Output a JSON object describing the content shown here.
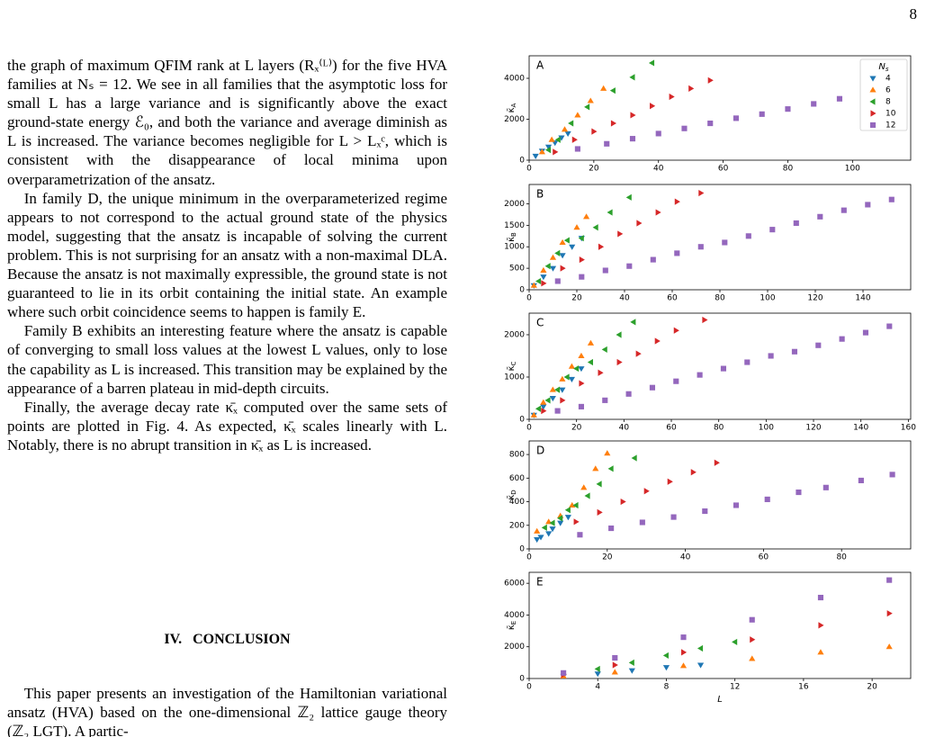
{
  "page_number": "8",
  "paragraphs": [
    "the graph of maximum QFIM rank at L layers (Rₓ⁽ᴸ⁾) for the five HVA families at Nₛ = 12. We see in all families that the asymptotic loss for small L has a large variance and is significantly above the exact ground-state energy ℰ₀, and both the variance and average diminish as L is increased. The variance becomes negligible for L > Lₓᶜ, which is consistent with the disappearance of local minima upon overparametrization of the ansatz.",
    "In family D, the unique minimum in the overparameterized regime appears to not correspond to the actual ground state of the physics model, suggesting that the ansatz is incapable of solving the current problem. This is not surprising for an ansatz with a non-maximal DLA. Because the ansatz is not maximally expressible, the ground state is not guaranteed to lie in its orbit containing the initial state. An example where such orbit coincidence seems to happen is family E.",
    "Family B exhibits an interesting feature where the ansatz is capable of converging to small loss values at the lowest L values, only to lose the capability as L is increased. This transition may be explained by the appearance of a barren plateau in mid-depth circuits.",
    "Finally, the average decay rate κ̄ₓ computed over the same sets of points are plotted in Fig. 4. As expected, κ̄ₓ scales linearly with L. Notably, there is no abrupt transition in κ̄ₓ as L is increased."
  ],
  "section_heading": "IV.   CONCLUSION",
  "conclusion_paragraph": "This paper presents an investigation of the Hamiltonian variational ansatz (HVA) based on the one-dimensional ℤ₂ lattice gauge theory (ℤ₂ LGT). A partic-",
  "chart_data": [
    {
      "type": "scatter",
      "title": "A",
      "ylabel": "κ̄",
      "ylabel_sub": "A",
      "xlim": [
        0,
        118
      ],
      "xticks": [
        0,
        20,
        40,
        60,
        80,
        100
      ],
      "ylim": [
        0,
        5100
      ],
      "yticks": [
        0,
        2000,
        4000
      ],
      "legend": "upper right",
      "legend_title": "N",
      "legend_title_sub": "s",
      "series": [
        {
          "name": "4",
          "color": "#1f77b4",
          "marker": "v",
          "x": [
            2,
            4,
            6,
            8,
            10,
            12
          ],
          "y": [
            200,
            450,
            650,
            850,
            1100,
            1300
          ]
        },
        {
          "name": "6",
          "color": "#ff7f0e",
          "marker": "^",
          "x": [
            4,
            7,
            11,
            15,
            19,
            23
          ],
          "y": [
            400,
            1000,
            1500,
            2200,
            2900,
            3500
          ]
        },
        {
          "name": "8",
          "color": "#2ca02c",
          "marker": "<",
          "x": [
            6,
            9,
            13,
            18,
            26,
            32,
            38
          ],
          "y": [
            500,
            1000,
            1800,
            2600,
            3400,
            4050,
            4750
          ]
        },
        {
          "name": "10",
          "color": "#d62728",
          "marker": ">",
          "x": [
            8,
            14,
            20,
            26,
            32,
            38,
            44,
            50,
            56
          ],
          "y": [
            400,
            1000,
            1400,
            1800,
            2200,
            2650,
            3100,
            3500,
            3900
          ]
        },
        {
          "name": "12",
          "color": "#9467bd",
          "marker": "s",
          "x": [
            15,
            24,
            32,
            40,
            48,
            56,
            64,
            72,
            80,
            88,
            96,
            104
          ],
          "y": [
            550,
            800,
            1050,
            1300,
            1550,
            1800,
            2050,
            2250,
            2500,
            2750,
            3000,
            3300
          ]
        }
      ]
    },
    {
      "type": "scatter",
      "title": "B",
      "ylabel": "κ̄",
      "ylabel_sub": "B",
      "xlim": [
        0,
        160
      ],
      "xticks": [
        0,
        20,
        40,
        60,
        80,
        100,
        120,
        140
      ],
      "ylim": [
        0,
        2450
      ],
      "yticks": [
        0,
        500,
        1000,
        1500,
        2000
      ],
      "series": [
        {
          "color": "#1f77b4",
          "marker": "v",
          "x": [
            2,
            6,
            10,
            14,
            18,
            22
          ],
          "y": [
            100,
            300,
            500,
            800,
            1000,
            1200
          ]
        },
        {
          "color": "#ff7f0e",
          "marker": "^",
          "x": [
            2,
            6,
            10,
            14,
            20,
            24
          ],
          "y": [
            100,
            450,
            750,
            1100,
            1450,
            1700
          ]
        },
        {
          "color": "#2ca02c",
          "marker": "<",
          "x": [
            4,
            8,
            12,
            16,
            22,
            28,
            34,
            42
          ],
          "y": [
            200,
            550,
            850,
            1150,
            1200,
            1450,
            1800,
            2150
          ]
        },
        {
          "color": "#d62728",
          "marker": ">",
          "x": [
            6,
            14,
            22,
            30,
            38,
            46,
            54,
            62,
            72
          ],
          "y": [
            150,
            500,
            700,
            1000,
            1300,
            1550,
            1800,
            2050,
            2250
          ]
        },
        {
          "color": "#9467bd",
          "marker": "s",
          "x": [
            12,
            22,
            32,
            42,
            52,
            62,
            72,
            82,
            92,
            102,
            112,
            122,
            132,
            142,
            152
          ],
          "y": [
            200,
            300,
            450,
            550,
            700,
            850,
            1000,
            1100,
            1250,
            1400,
            1550,
            1700,
            1850,
            1980,
            2100
          ]
        }
      ]
    },
    {
      "type": "scatter",
      "title": "C",
      "ylabel": "κ̄",
      "ylabel_sub": "C",
      "xlim": [
        0,
        161
      ],
      "xticks": [
        0,
        20,
        40,
        60,
        80,
        100,
        120,
        140,
        160
      ],
      "ylim": [
        0,
        2510
      ],
      "yticks": [
        0,
        1000,
        2000
      ],
      "series": [
        {
          "color": "#1f77b4",
          "marker": "v",
          "x": [
            2,
            6,
            10,
            14,
            18,
            22
          ],
          "y": [
            100,
            300,
            500,
            700,
            950,
            1200
          ]
        },
        {
          "color": "#ff7f0e",
          "marker": "^",
          "x": [
            2,
            6,
            10,
            14,
            18,
            22,
            26
          ],
          "y": [
            100,
            400,
            700,
            950,
            1250,
            1500,
            1800
          ]
        },
        {
          "color": "#2ca02c",
          "marker": "<",
          "x": [
            4,
            8,
            12,
            16,
            20,
            26,
            32,
            38,
            44
          ],
          "y": [
            250,
            450,
            700,
            1000,
            1200,
            1350,
            1650,
            2000,
            2300
          ]
        },
        {
          "color": "#d62728",
          "marker": ">",
          "x": [
            6,
            14,
            22,
            30,
            38,
            46,
            54,
            62,
            74
          ],
          "y": [
            200,
            450,
            850,
            1100,
            1350,
            1550,
            1850,
            2100,
            2350
          ]
        },
        {
          "color": "#9467bd",
          "marker": "s",
          "x": [
            12,
            22,
            32,
            42,
            52,
            62,
            72,
            82,
            92,
            102,
            112,
            122,
            132,
            142,
            152
          ],
          "y": [
            200,
            300,
            450,
            600,
            750,
            900,
            1050,
            1200,
            1350,
            1500,
            1600,
            1750,
            1900,
            2050,
            2200
          ]
        }
      ]
    },
    {
      "type": "scatter",
      "title": "D",
      "ylabel": "κ̄",
      "ylabel_sub": "D",
      "xlim": [
        0,
        97.7
      ],
      "xticks": [
        0,
        20,
        40,
        60,
        80
      ],
      "ylim": [
        0,
        915
      ],
      "yticks": [
        0,
        200,
        400,
        600,
        800
      ],
      "series": [
        {
          "color": "#1f77b4",
          "marker": "v",
          "x": [
            2,
            3,
            5,
            6,
            8,
            10
          ],
          "y": [
            80,
            100,
            130,
            170,
            220,
            270
          ]
        },
        {
          "color": "#ff7f0e",
          "marker": "^",
          "x": [
            2,
            5,
            8,
            11,
            14,
            17,
            20
          ],
          "y": [
            150,
            230,
            280,
            370,
            520,
            680,
            810
          ]
        },
        {
          "color": "#2ca02c",
          "marker": "<",
          "x": [
            4,
            6,
            8,
            10,
            12,
            15,
            18,
            21,
            27
          ],
          "y": [
            180,
            220,
            260,
            330,
            370,
            450,
            550,
            680,
            770
          ]
        },
        {
          "color": "#d62728",
          "marker": ">",
          "x": [
            12,
            18,
            24,
            30,
            36,
            42,
            48
          ],
          "y": [
            230,
            310,
            400,
            490,
            570,
            650,
            730
          ]
        },
        {
          "color": "#9467bd",
          "marker": "s",
          "x": [
            13,
            21,
            29,
            37,
            45,
            53,
            61,
            69,
            76,
            85,
            93
          ],
          "y": [
            120,
            175,
            225,
            270,
            320,
            370,
            420,
            480,
            520,
            580,
            630
          ]
        }
      ]
    },
    {
      "type": "scatter",
      "title": "E",
      "ylabel": "κ̄",
      "ylabel_sub": "E",
      "xlabel": "L",
      "xlim": [
        0,
        22.25
      ],
      "xticks": [
        0,
        4,
        8,
        12,
        16,
        20
      ],
      "ylim": [
        0,
        6690
      ],
      "yticks": [
        0,
        2000,
        4000,
        6000
      ],
      "series": [
        {
          "color": "#1f77b4",
          "marker": "v",
          "x": [
            2,
            4,
            6,
            8,
            10
          ],
          "y": [
            150,
            300,
            500,
            700,
            850
          ]
        },
        {
          "color": "#ff7f0e",
          "marker": "^",
          "x": [
            2,
            5,
            9,
            13,
            17,
            21
          ],
          "y": [
            150,
            400,
            800,
            1250,
            1650,
            2000
          ]
        },
        {
          "color": "#2ca02c",
          "marker": "<",
          "x": [
            4,
            6,
            8,
            10,
            12
          ],
          "y": [
            600,
            1000,
            1450,
            1900,
            2300
          ]
        },
        {
          "color": "#d62728",
          "marker": ">",
          "x": [
            2,
            5,
            9,
            13,
            17,
            21
          ],
          "y": [
            250,
            850,
            1650,
            2450,
            3350,
            4100
          ]
        },
        {
          "color": "#9467bd",
          "marker": "s",
          "x": [
            2,
            5,
            9,
            13,
            17,
            21
          ],
          "y": [
            350,
            1300,
            2600,
            3700,
            5100,
            6200
          ]
        }
      ]
    }
  ]
}
